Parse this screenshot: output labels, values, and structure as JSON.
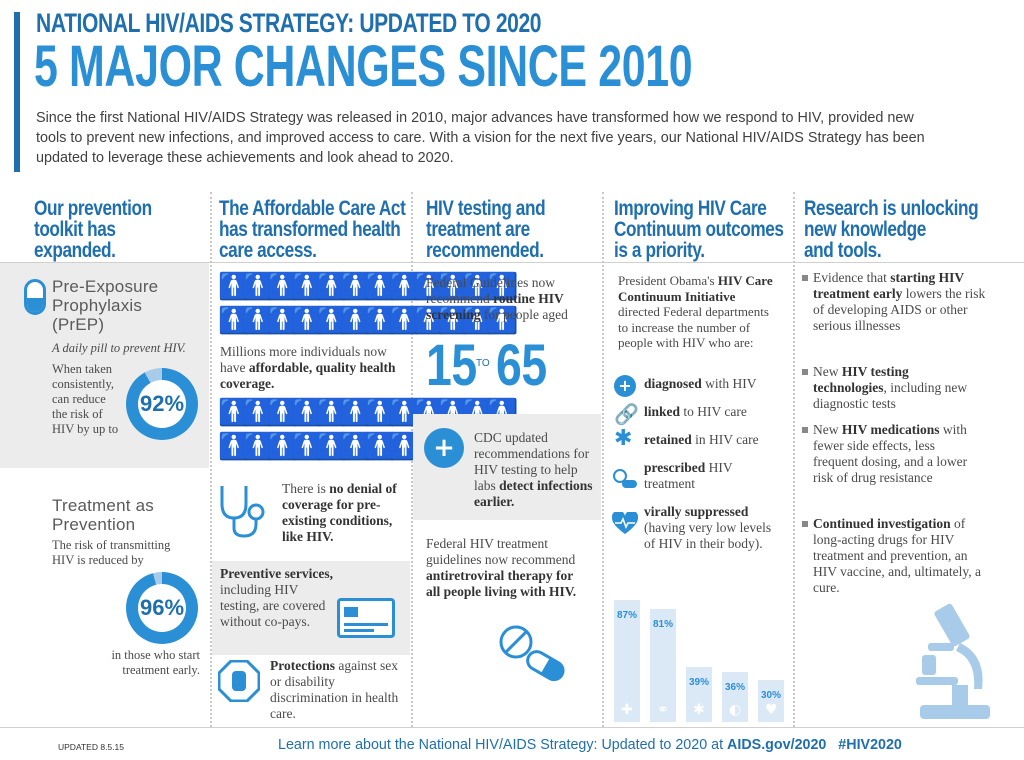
{
  "header": {
    "subtitle": "NATIONAL HIV/AIDS STRATEGY: UPDATED TO 2020",
    "title": "5 MAJOR CHANGES SINCE 2010",
    "intro": "Since the first National HIV/AIDS Strategy was released in 2010, major advances have transformed how we respond to HIV, provided new tools to prevent new infections, and improved access to care. With a vision for the next five years, our National HIV/AIDS Strategy has been updated to leverage these achievements and look ahead to 2020."
  },
  "col1": {
    "heading": [
      "Our prevention",
      "toolkit has",
      "expanded."
    ],
    "prep_title": [
      "Pre-Exposure",
      "Prophylaxis",
      "(PrEP)"
    ],
    "prep_tagline": "A daily pill to prevent HIV.",
    "prep_text": [
      "When taken",
      "consistently,",
      "can reduce",
      "the risk of",
      "HIV by up to"
    ],
    "prep_value": "92%",
    "prep_fraction": 0.92,
    "tap_title": [
      "Treatment as",
      "Prevention"
    ],
    "tap_text": [
      "The risk of transmitting",
      "HIV is reduced by"
    ],
    "tap_value": "96%",
    "tap_fraction": 0.96,
    "tap_after": [
      "in those who start",
      "treatment early."
    ]
  },
  "col2": {
    "heading": [
      "The Affordable Care Act",
      "has transformed health",
      "care access."
    ],
    "coverage_text_pre": "Millions more individuals now have ",
    "coverage_bold": "affordable, quality health coverage.",
    "denial_pre": "There is ",
    "denial_bold": "no denial of coverage for pre-existing conditions,",
    "denial_post": " like HIV.",
    "prev_bold": "Preventive services,",
    "prev_text": " including HIV testing, are covered without co-pays.",
    "prot_bold": "Protections",
    "prot_text": " against sex or disability discrimination in health care."
  },
  "col3": {
    "heading": [
      "HIV testing and",
      "treatment are",
      "recommended."
    ],
    "guidelines_pre": "Federal Guidelines now recommend ",
    "guidelines_bold": "routine HIV screening",
    "guidelines_post": " for people aged",
    "age_from": "15",
    "age_to_word": "TO",
    "age_to": "65",
    "cdc_pre": "CDC updated recommendations for HIV testing to help labs ",
    "cdc_bold": "detect infections earlier.",
    "treat_pre": "Federal HIV treatment guidelines now recommend ",
    "treat_bold": "antiretroviral therapy for all people living with HIV."
  },
  "col4": {
    "heading": [
      "Improving HIV Care",
      "Continuum outcomes",
      "is a priority."
    ],
    "intro_pre": "President Obama's ",
    "intro_bold": "HIV Care Continuum Initiative",
    "intro_post": " directed Federal departments to increase the number of people with HIV who are:",
    "items": [
      {
        "bold": "diagnosed",
        "text": " with HIV",
        "icon": "plus-icon"
      },
      {
        "bold": "linked",
        "text": " to HIV care",
        "icon": "link-icon"
      },
      {
        "bold": "retained",
        "text": " in HIV care",
        "icon": "medical-star-icon"
      },
      {
        "bold": "prescribed",
        "text": " HIV treatment",
        "icon": "pill-icon"
      },
      {
        "bold": "virally suppressed",
        "text": " (having very low levels of HIV in their body).",
        "icon": "heart-icon"
      }
    ]
  },
  "chart_data": {
    "type": "bar",
    "categories": [
      "diagnosed",
      "linked",
      "retained",
      "prescribed",
      "virally suppressed"
    ],
    "values": [
      87,
      81,
      39,
      36,
      30
    ],
    "labels": [
      "87%",
      "81%",
      "39%",
      "36%",
      "30%"
    ],
    "ylim": [
      0,
      100
    ]
  },
  "col5": {
    "heading": [
      "Research is unlocking",
      "new knowledge",
      "and tools."
    ],
    "bullets": [
      {
        "pre": "Evidence that ",
        "bold": "starting HIV treatment early",
        "post": " lowers the risk of developing AIDS or other serious illnesses"
      },
      {
        "pre": "New ",
        "bold": "HIV testing technologies",
        "post": ", including new diagnostic tests"
      },
      {
        "pre": "New ",
        "bold": "HIV medications",
        "post": " with fewer side effects, less frequent dosing, and a lower risk of drug resistance"
      },
      {
        "pre": "",
        "bold": "Continued investigation",
        "post": " of long-acting drugs for HIV treatment and prevention, an HIV vaccine, and, ultimately, a cure."
      }
    ]
  },
  "footer": {
    "updated": "UPDATED 8.5.15",
    "learn": "Learn more about the National HIV/AIDS Strategy: Updated to 2020 at ",
    "link": "AIDS.gov/2020",
    "hashtag": "#HIV2020"
  },
  "colors": {
    "primary": "#1f6faf",
    "accent": "#2b8fd6",
    "light": "#a8cbe9",
    "panel": "#ececec"
  }
}
